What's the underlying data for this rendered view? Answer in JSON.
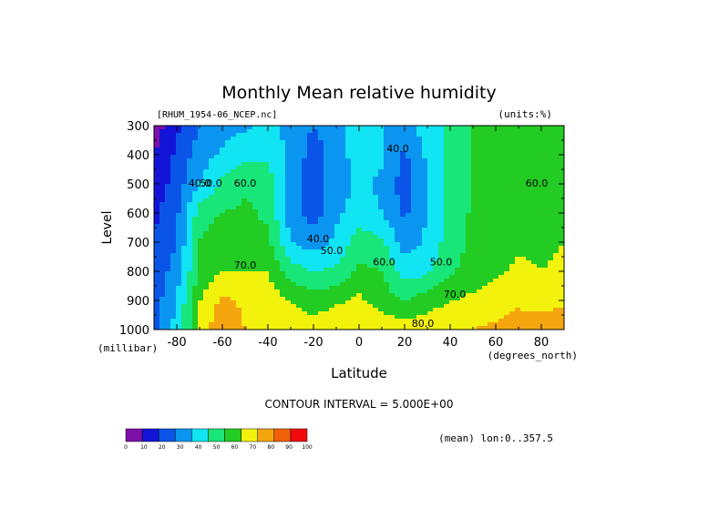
{
  "chart_data": {
    "type": "heatmap",
    "title": "Monthly Mean relative humidity",
    "dataset_label": "[RHUM_1954-06_NCEP.nc]",
    "units_label": "(units:%)",
    "xlabel": "Latitude",
    "x_units": "(degrees_north)",
    "ylabel": "Level",
    "y_units": "(millibar)",
    "xlim": [
      -90,
      90
    ],
    "ylim": [
      1000,
      300
    ],
    "x_ticks": [
      -80,
      -60,
      -40,
      -20,
      0,
      20,
      40,
      60,
      80
    ],
    "y_ticks": [
      300,
      400,
      500,
      600,
      700,
      800,
      900,
      1000
    ],
    "contour_interval_text": "CONTOUR INTERVAL = 5.000E+00",
    "mean_text": "(mean) lon:0..357.5",
    "contour_labels": [
      {
        "text": "40.0",
        "lat": -70,
        "level": 510
      },
      {
        "text": "50.0",
        "lat": -65,
        "level": 510
      },
      {
        "text": "60.0",
        "lat": -50,
        "level": 510
      },
      {
        "text": "70.0",
        "lat": -50,
        "level": 790
      },
      {
        "text": "40.0",
        "lat": -18,
        "level": 700
      },
      {
        "text": "50.0",
        "lat": -12,
        "level": 740
      },
      {
        "text": "40.0",
        "lat": 17,
        "level": 390
      },
      {
        "text": "60.0",
        "lat": 11,
        "level": 780
      },
      {
        "text": "50.0",
        "lat": 36,
        "level": 780
      },
      {
        "text": "70.0",
        "lat": 42,
        "level": 890
      },
      {
        "text": "80.0",
        "lat": 28,
        "level": 990
      },
      {
        "text": "60.0",
        "lat": 78,
        "level": 510
      }
    ],
    "colorbar": {
      "levels": [
        0,
        10,
        20,
        30,
        40,
        50,
        60,
        70,
        80,
        90,
        100
      ],
      "colors": [
        "#7e10aa",
        "#1414d9",
        "#0a55e8",
        "#0a96f0",
        "#11e4f2",
        "#19e678",
        "#22cc22",
        "#f2f20d",
        "#f5a50e",
        "#f0620a",
        "#f20a0a"
      ]
    },
    "grid": {
      "lats": [
        -90,
        -80,
        -70,
        -60,
        -50,
        -40,
        -30,
        -20,
        -10,
        0,
        10,
        20,
        30,
        40,
        50,
        60,
        70,
        80,
        90
      ],
      "levels": [
        300,
        400,
        500,
        600,
        700,
        800,
        900,
        1000
      ],
      "values": [
        [
          5,
          18,
          30,
          35,
          38,
          45,
          35,
          30,
          35,
          45,
          40,
          35,
          45,
          52,
          60,
          62,
          62,
          60,
          60
        ],
        [
          10,
          22,
          35,
          42,
          48,
          48,
          38,
          25,
          35,
          45,
          42,
          28,
          42,
          52,
          62,
          62,
          62,
          62,
          62
        ],
        [
          12,
          25,
          40,
          52,
          58,
          55,
          35,
          25,
          35,
          42,
          38,
          25,
          40,
          52,
          60,
          65,
          62,
          62,
          65
        ],
        [
          18,
          28,
          55,
          60,
          62,
          58,
          35,
          25,
          38,
          45,
          40,
          28,
          40,
          52,
          62,
          67,
          65,
          63,
          68
        ],
        [
          20,
          30,
          60,
          68,
          65,
          62,
          40,
          35,
          42,
          55,
          52,
          35,
          42,
          55,
          62,
          65,
          68,
          68,
          70
        ],
        [
          22,
          35,
          62,
          70,
          70,
          70,
          55,
          50,
          52,
          62,
          60,
          45,
          48,
          58,
          65,
          68,
          72,
          70,
          72
        ],
        [
          25,
          40,
          70,
          82,
          78,
          75,
          70,
          65,
          68,
          72,
          65,
          60,
          65,
          70,
          72,
          75,
          78,
          75,
          78
        ],
        [
          25,
          45,
          72,
          90,
          80,
          77,
          75,
          75,
          78,
          80,
          78,
          75,
          77,
          78,
          80,
          82,
          85,
          88,
          88
        ]
      ]
    }
  }
}
